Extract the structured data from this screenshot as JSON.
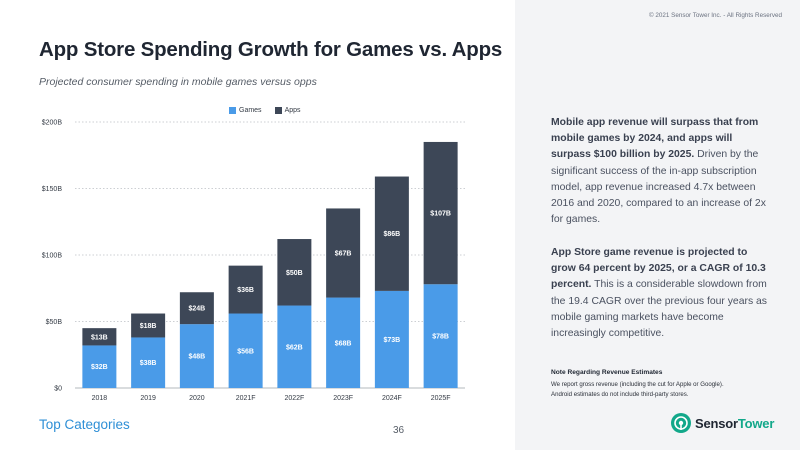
{
  "title": "App Store Spending Growth for Games vs. Apps",
  "subtitle": "Projected consumer spending in mobile games versus opps",
  "copyright": "© 2021 Sensor Tower Inc. - All Rights Reserved",
  "footer": {
    "section": "Top Categories",
    "page_number": "36"
  },
  "paragraphs": [
    {
      "bold": "Mobile app revenue will surpass that from mobile games by 2024, and apps will surpass $100 billion by 2025.",
      "text": " Driven by the significant success of the in-app subscription model, app revenue increased 4.7x between 2016 and 2020, compared to an increase of 2x for games."
    },
    {
      "bold": "App Store game revenue is projected to grow 64 percent by 2025, or a CAGR of 10.3 percent.",
      "text": " This is a considerable slowdown from the 19.4 CAGR over the previous four years as mobile gaming markets have become increasingly competitive."
    }
  ],
  "note": {
    "title": "Note Regarding Revenue Estimates",
    "lines": [
      "We report gross revenue (including the cut for Apple or Google).",
      "Android estimates do not include third-party stores."
    ]
  },
  "logo": {
    "part1": "Sensor",
    "part2": "Tower"
  },
  "colors": {
    "games": "#4a9be8",
    "apps": "#3d4757",
    "accent": "#12a88a",
    "link": "#2e8fd6"
  },
  "chart_data": {
    "type": "bar",
    "stacked": true,
    "categories": [
      "2018",
      "2019",
      "2020",
      "2021F",
      "2022F",
      "2023F",
      "2024F",
      "2025F"
    ],
    "series": [
      {
        "name": "Games",
        "values": [
          32,
          38,
          48,
          56,
          62,
          68,
          73,
          78
        ],
        "labels": [
          "$32B",
          "$38B",
          "$48B",
          "$56B",
          "$62B",
          "$68B",
          "$73B",
          "$78B"
        ]
      },
      {
        "name": "Apps",
        "values": [
          13,
          18,
          24,
          36,
          50,
          67,
          86,
          107
        ],
        "labels": [
          "$13B",
          "$18B",
          "$24B",
          "$36B",
          "$50B",
          "$67B",
          "$86B",
          "$107B"
        ]
      }
    ],
    "ylim": [
      0,
      200
    ],
    "yticks": [
      0,
      50,
      100,
      150,
      200
    ],
    "ytick_labels": [
      "$0",
      "$50B",
      "$100B",
      "$150B",
      "$200B"
    ],
    "grid": true,
    "legend": "top-center"
  }
}
